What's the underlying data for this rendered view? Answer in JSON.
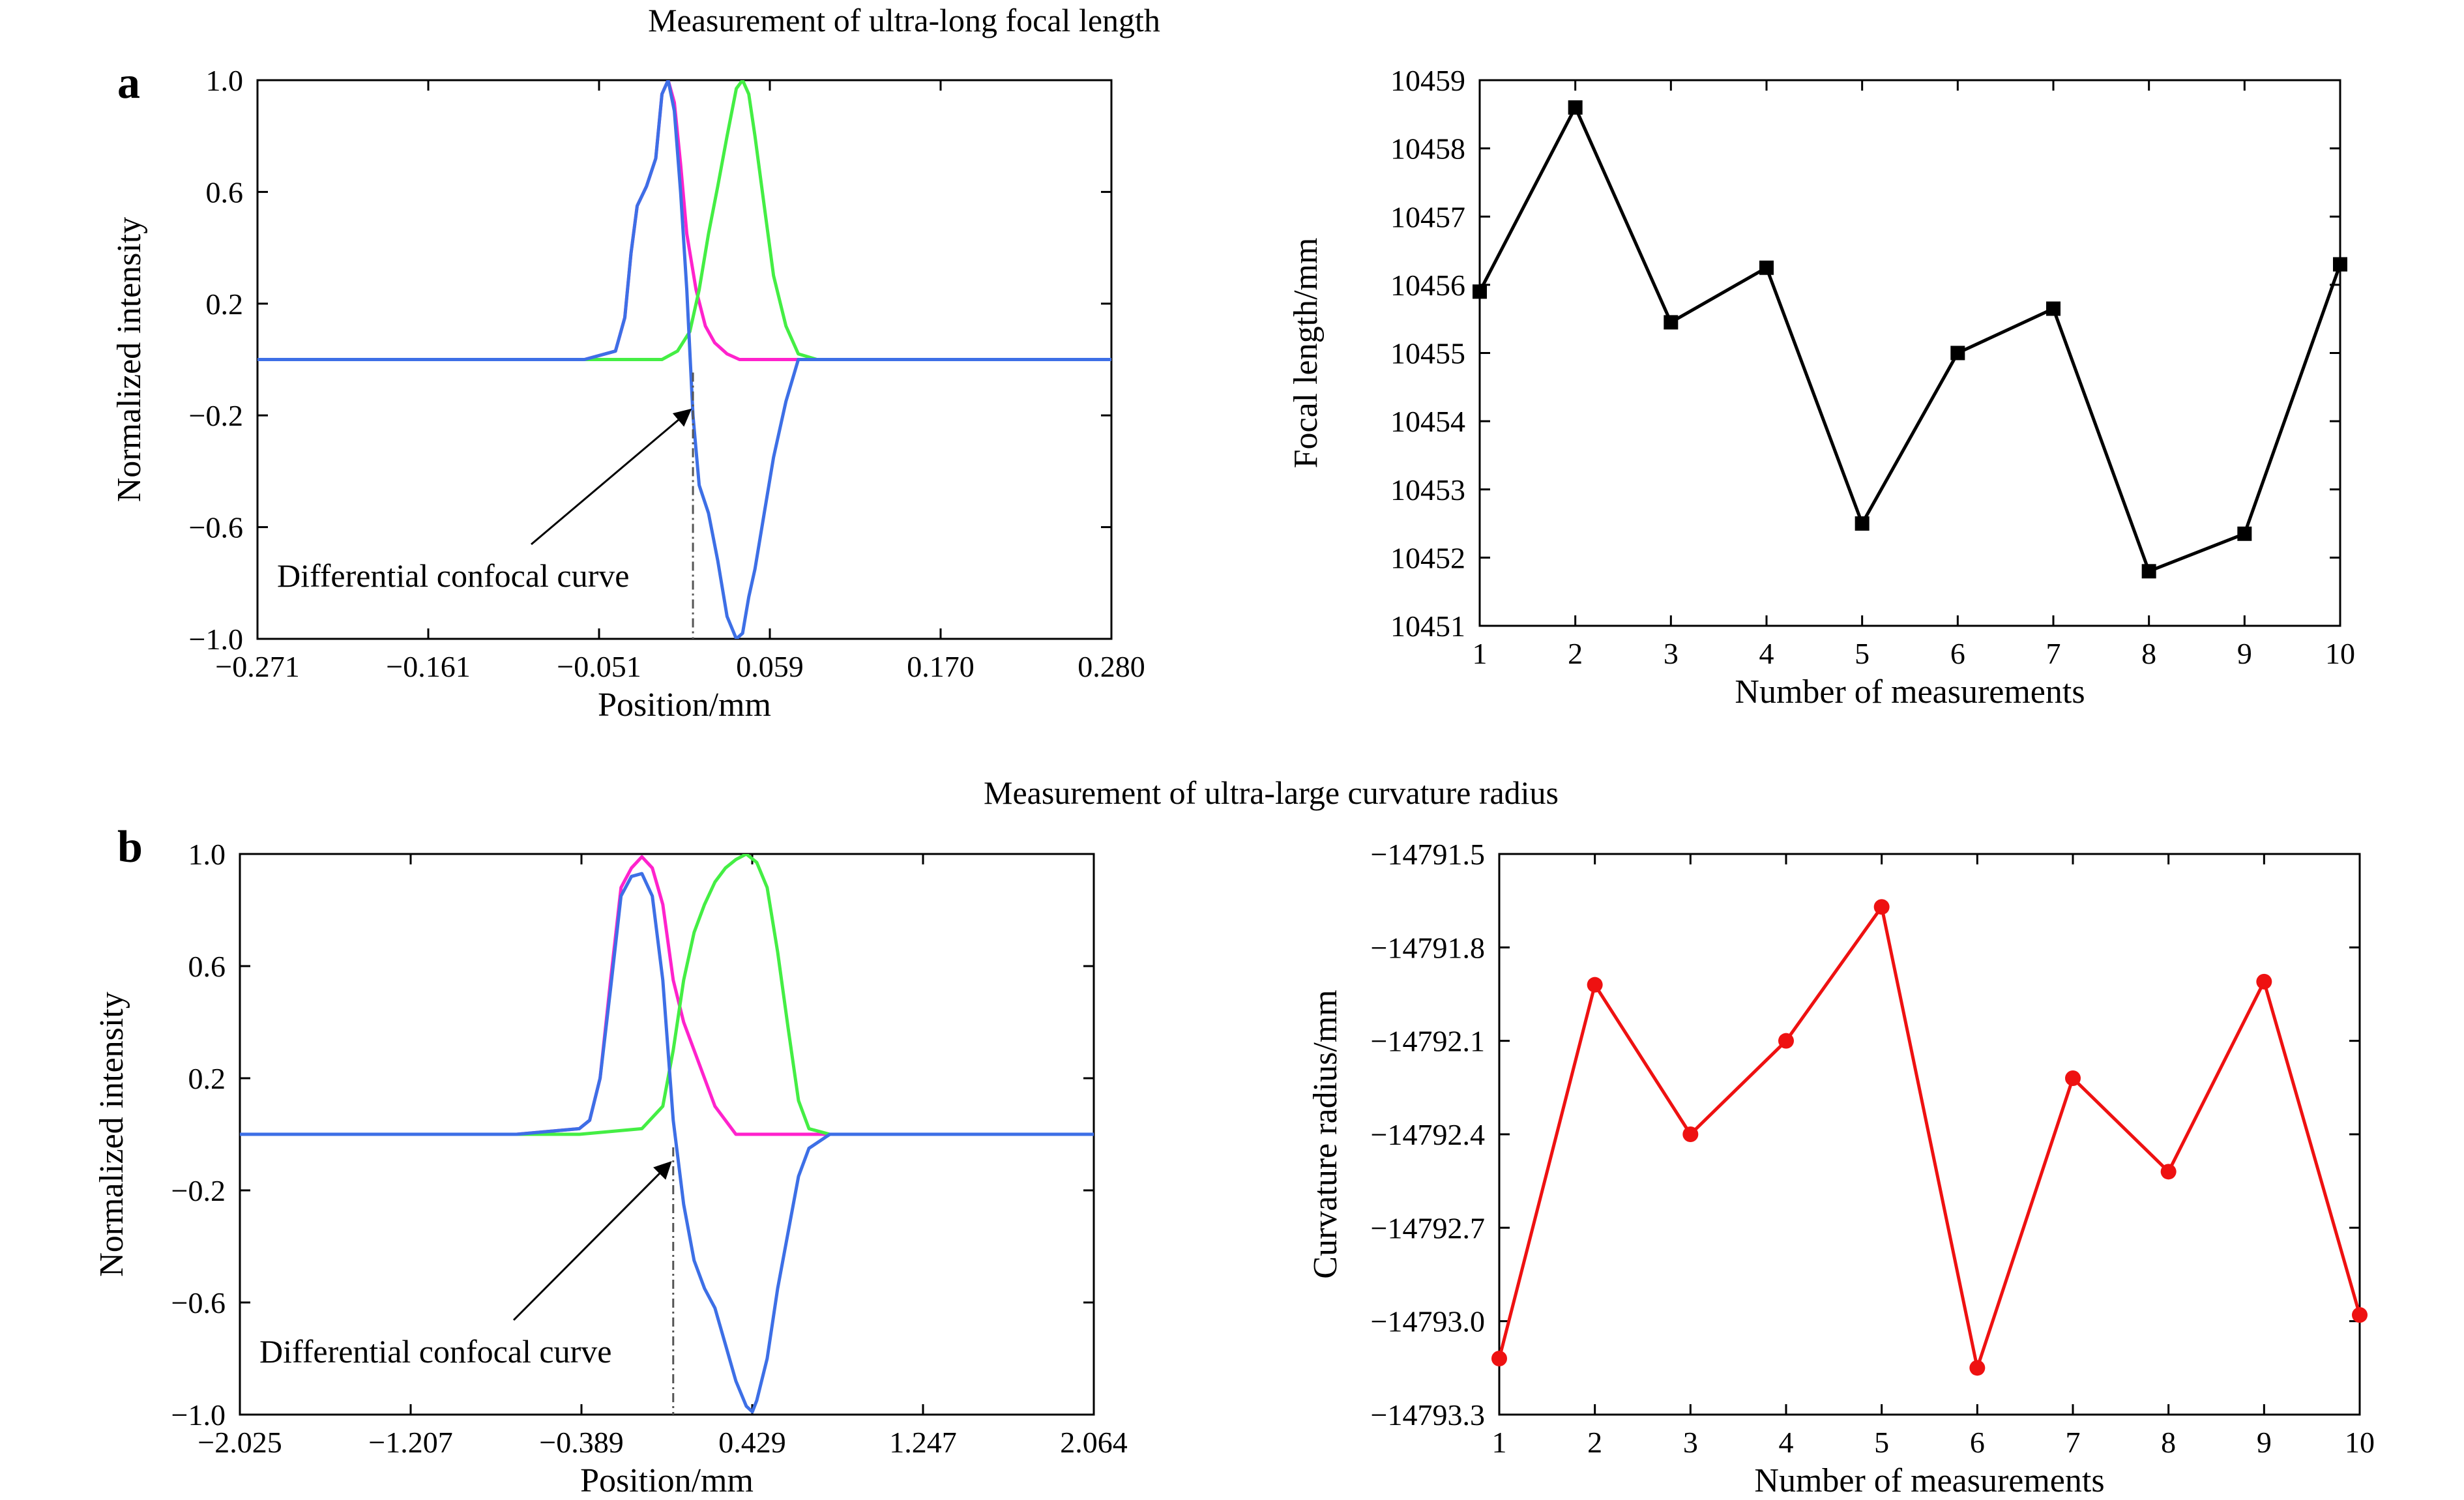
{
  "figure": {
    "title_top": "Measurement of ultra-long focal length",
    "title_bottom": "Measurement of ultra-large curvature radius",
    "panel_a": "a",
    "panel_b": "b",
    "annotation": "Differential confocal curve"
  },
  "chart_data": [
    {
      "id": "a-left",
      "type": "line",
      "xlabel": "Position/mm",
      "ylabel": "Normalized  intensity",
      "xlim": [
        -0.271,
        0.28
      ],
      "ylim": [
        -1.0,
        1.0
      ],
      "xticks": [
        "−0.271",
        "−0.161",
        "−0.051",
        "0.059",
        "0.170",
        "0.280"
      ],
      "yticks": [
        "1.0",
        "0.6",
        "0.2",
        "−0.2",
        "−0.6",
        "−1.0"
      ],
      "dashed_x": 0.01,
      "arrow_target": [
        0.01,
        -0.18
      ],
      "series": [
        {
          "color": "#ff22cc",
          "x": [
            -0.271,
            -0.06,
            -0.04,
            -0.034,
            -0.03,
            -0.026,
            -0.02,
            -0.014,
            -0.01,
            -0.006,
            -0.002,
            0.002,
            0.006,
            0.012,
            0.018,
            0.024,
            0.032,
            0.04,
            0.05,
            0.06,
            0.08,
            0.28
          ],
          "y": [
            0.0,
            0.0,
            0.03,
            0.15,
            0.38,
            0.55,
            0.62,
            0.72,
            0.95,
            1.0,
            0.92,
            0.7,
            0.45,
            0.25,
            0.12,
            0.06,
            0.02,
            0.0,
            0.0,
            0.0,
            0.0,
            0.0
          ]
        },
        {
          "color": "#44ee44",
          "x": [
            -0.271,
            -0.04,
            -0.01,
            0.0,
            0.008,
            0.014,
            0.02,
            0.026,
            0.032,
            0.038,
            0.042,
            0.046,
            0.05,
            0.056,
            0.062,
            0.07,
            0.078,
            0.09,
            0.12,
            0.28
          ],
          "y": [
            0.0,
            0.0,
            0.0,
            0.03,
            0.1,
            0.25,
            0.45,
            0.62,
            0.8,
            0.97,
            1.0,
            0.95,
            0.8,
            0.55,
            0.3,
            0.12,
            0.02,
            0.0,
            0.0,
            0.0
          ]
        },
        {
          "color": "#3d6fe6",
          "x": [
            -0.271,
            -0.06,
            -0.04,
            -0.034,
            -0.03,
            -0.026,
            -0.02,
            -0.014,
            -0.01,
            -0.006,
            -0.002,
            0.002,
            0.006,
            0.01,
            0.014,
            0.02,
            0.026,
            0.032,
            0.038,
            0.042,
            0.046,
            0.05,
            0.056,
            0.062,
            0.07,
            0.078,
            0.09,
            0.12,
            0.28
          ],
          "y": [
            0.0,
            0.0,
            0.03,
            0.15,
            0.38,
            0.55,
            0.62,
            0.72,
            0.95,
            1.0,
            0.89,
            0.6,
            0.25,
            -0.2,
            -0.45,
            -0.55,
            -0.72,
            -0.92,
            -1.0,
            -0.98,
            -0.85,
            -0.75,
            -0.55,
            -0.35,
            -0.15,
            0.0,
            0.0,
            0.0,
            0.0
          ]
        }
      ]
    },
    {
      "id": "a-right",
      "type": "line",
      "xlabel": "Number of measurements",
      "ylabel": "Focal length/mm",
      "xlim": [
        1,
        10
      ],
      "ylim": [
        10451,
        10459
      ],
      "xticks": [
        "1",
        "2",
        "3",
        "4",
        "5",
        "6",
        "7",
        "8",
        "9",
        "10"
      ],
      "yticks": [
        "10459",
        "10458",
        "10457",
        "10456",
        "10455",
        "10454",
        "10453",
        "10452",
        "10451"
      ],
      "marker": "square",
      "color": "#000000",
      "x": [
        1,
        2,
        3,
        4,
        5,
        6,
        7,
        8,
        9,
        10
      ],
      "y": [
        10455.9,
        10458.6,
        10455.45,
        10456.25,
        10452.5,
        10455.0,
        10455.65,
        10451.8,
        10452.35,
        10456.3
      ]
    },
    {
      "id": "b-left",
      "type": "line",
      "xlabel": "Position/mm",
      "ylabel": "Normalized  intensity",
      "xlim": [
        -2.025,
        2.064
      ],
      "ylim": [
        -1.0,
        1.0
      ],
      "xticks": [
        "−2.025",
        "−1.207",
        "−0.389",
        "0.429",
        "1.247",
        "2.064"
      ],
      "yticks": [
        "1.0",
        "0.6",
        "0.2",
        "−0.2",
        "−0.6",
        "−1.0"
      ],
      "dashed_x": 0.05,
      "arrow_target": [
        0.05,
        -0.1
      ],
      "series": [
        {
          "color": "#ff22cc",
          "x": [
            -2.025,
            -0.7,
            -0.4,
            -0.35,
            -0.3,
            -0.25,
            -0.2,
            -0.15,
            -0.1,
            -0.05,
            0.0,
            0.05,
            0.1,
            0.15,
            0.2,
            0.25,
            0.35,
            0.6,
            2.064
          ],
          "y": [
            0.0,
            0.0,
            0.02,
            0.05,
            0.2,
            0.55,
            0.88,
            0.95,
            0.99,
            0.95,
            0.82,
            0.55,
            0.4,
            0.3,
            0.2,
            0.1,
            0.0,
            0.0,
            0.0
          ]
        },
        {
          "color": "#44ee44",
          "x": [
            -2.025,
            -0.4,
            -0.1,
            0.0,
            0.05,
            0.1,
            0.15,
            0.2,
            0.25,
            0.3,
            0.35,
            0.4,
            0.45,
            0.5,
            0.55,
            0.6,
            0.65,
            0.7,
            0.8,
            2.064
          ],
          "y": [
            0.0,
            0.0,
            0.02,
            0.1,
            0.3,
            0.55,
            0.72,
            0.82,
            0.9,
            0.95,
            0.98,
            1.0,
            0.97,
            0.88,
            0.65,
            0.38,
            0.12,
            0.02,
            0.0,
            0.0
          ]
        },
        {
          "color": "#3d6fe6",
          "x": [
            -2.025,
            -0.7,
            -0.4,
            -0.35,
            -0.3,
            -0.25,
            -0.2,
            -0.15,
            -0.1,
            -0.05,
            0.0,
            0.05,
            0.1,
            0.15,
            0.2,
            0.25,
            0.3,
            0.35,
            0.4,
            0.429,
            0.45,
            0.5,
            0.55,
            0.6,
            0.65,
            0.7,
            0.8,
            2.064
          ],
          "y": [
            0.0,
            0.0,
            0.02,
            0.05,
            0.2,
            0.52,
            0.85,
            0.92,
            0.93,
            0.85,
            0.55,
            0.05,
            -0.25,
            -0.45,
            -0.55,
            -0.62,
            -0.75,
            -0.88,
            -0.97,
            -0.99,
            -0.95,
            -0.8,
            -0.55,
            -0.35,
            -0.15,
            -0.05,
            0.0,
            0.0
          ]
        }
      ]
    },
    {
      "id": "b-right",
      "type": "line",
      "xlabel": "Number of measurements",
      "ylabel": "Curvature radius/mm",
      "xlim": [
        1,
        10
      ],
      "ylim": [
        -14793.3,
        -14791.5
      ],
      "xticks": [
        "1",
        "2",
        "3",
        "4",
        "5",
        "6",
        "7",
        "8",
        "9",
        "10"
      ],
      "yticks": [
        "−14791.5",
        "−14791.8",
        "−14792.1",
        "−14792.4",
        "−14792.7",
        "−14793.0",
        "−14793.3"
      ],
      "marker": "circle",
      "color": "#ee1111",
      "x": [
        1,
        2,
        3,
        4,
        5,
        6,
        7,
        8,
        9,
        10
      ],
      "y": [
        -14793.12,
        -14791.92,
        -14792.4,
        -14792.1,
        -14791.67,
        -14793.15,
        -14792.22,
        -14792.52,
        -14791.91,
        -14792.98
      ]
    }
  ]
}
